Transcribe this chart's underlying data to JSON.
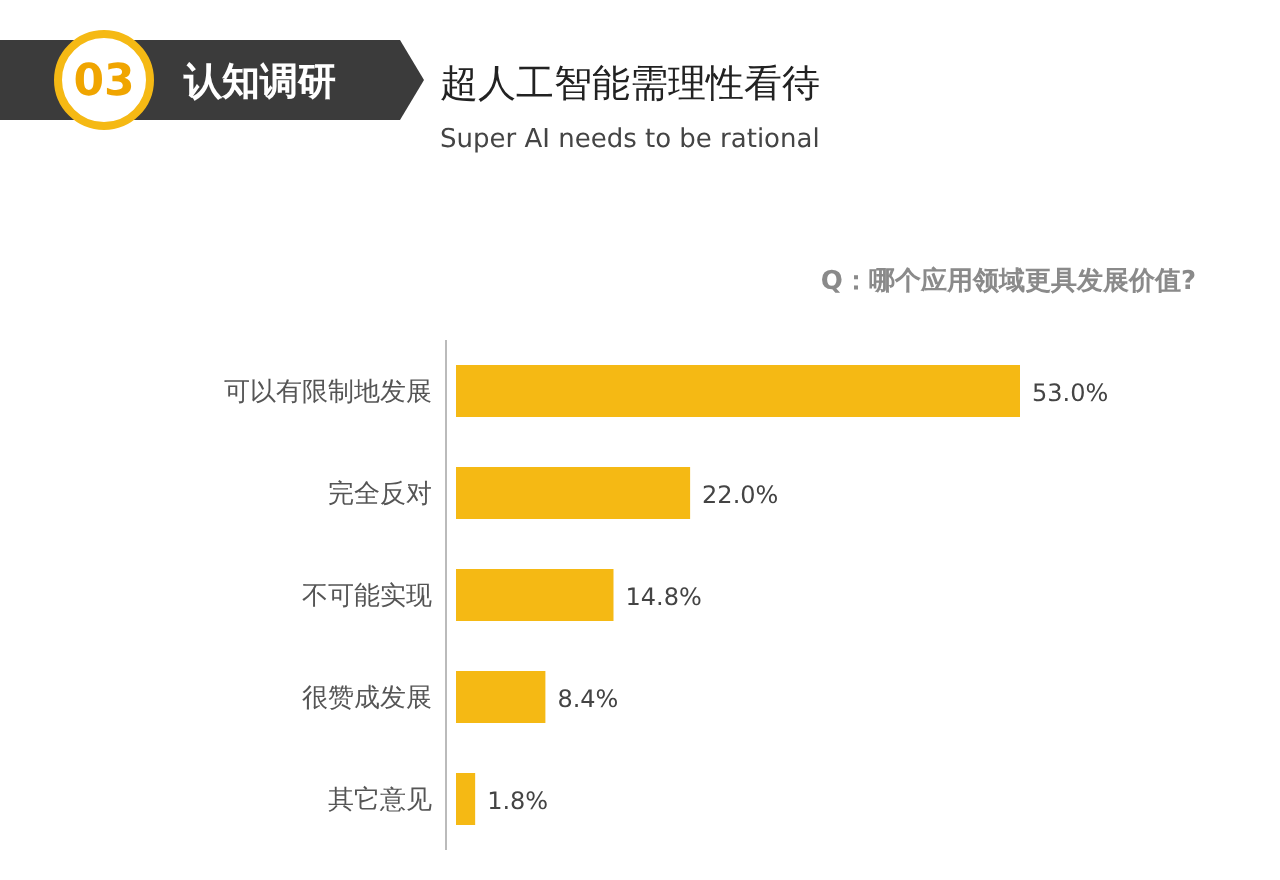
{
  "chart_data": {
    "type": "bar",
    "orientation": "horizontal",
    "title": "超人工智能需理性看待",
    "subtitle": "Super AI needs to be rational",
    "annotations": [
      "03",
      "认知调研",
      "Q：哪个应用领域更具发展价值?"
    ],
    "categories": [
      "可以有限制地发展",
      "完全反对",
      "不可能实现",
      "很赞成发展",
      "其它意见"
    ],
    "values": [
      53.0,
      22.0,
      14.8,
      8.4,
      1.8
    ],
    "value_labels": [
      "53.0%",
      "22.0%",
      "14.8%",
      "8.4%",
      "1.8%"
    ],
    "color": "#f5b914"
  }
}
